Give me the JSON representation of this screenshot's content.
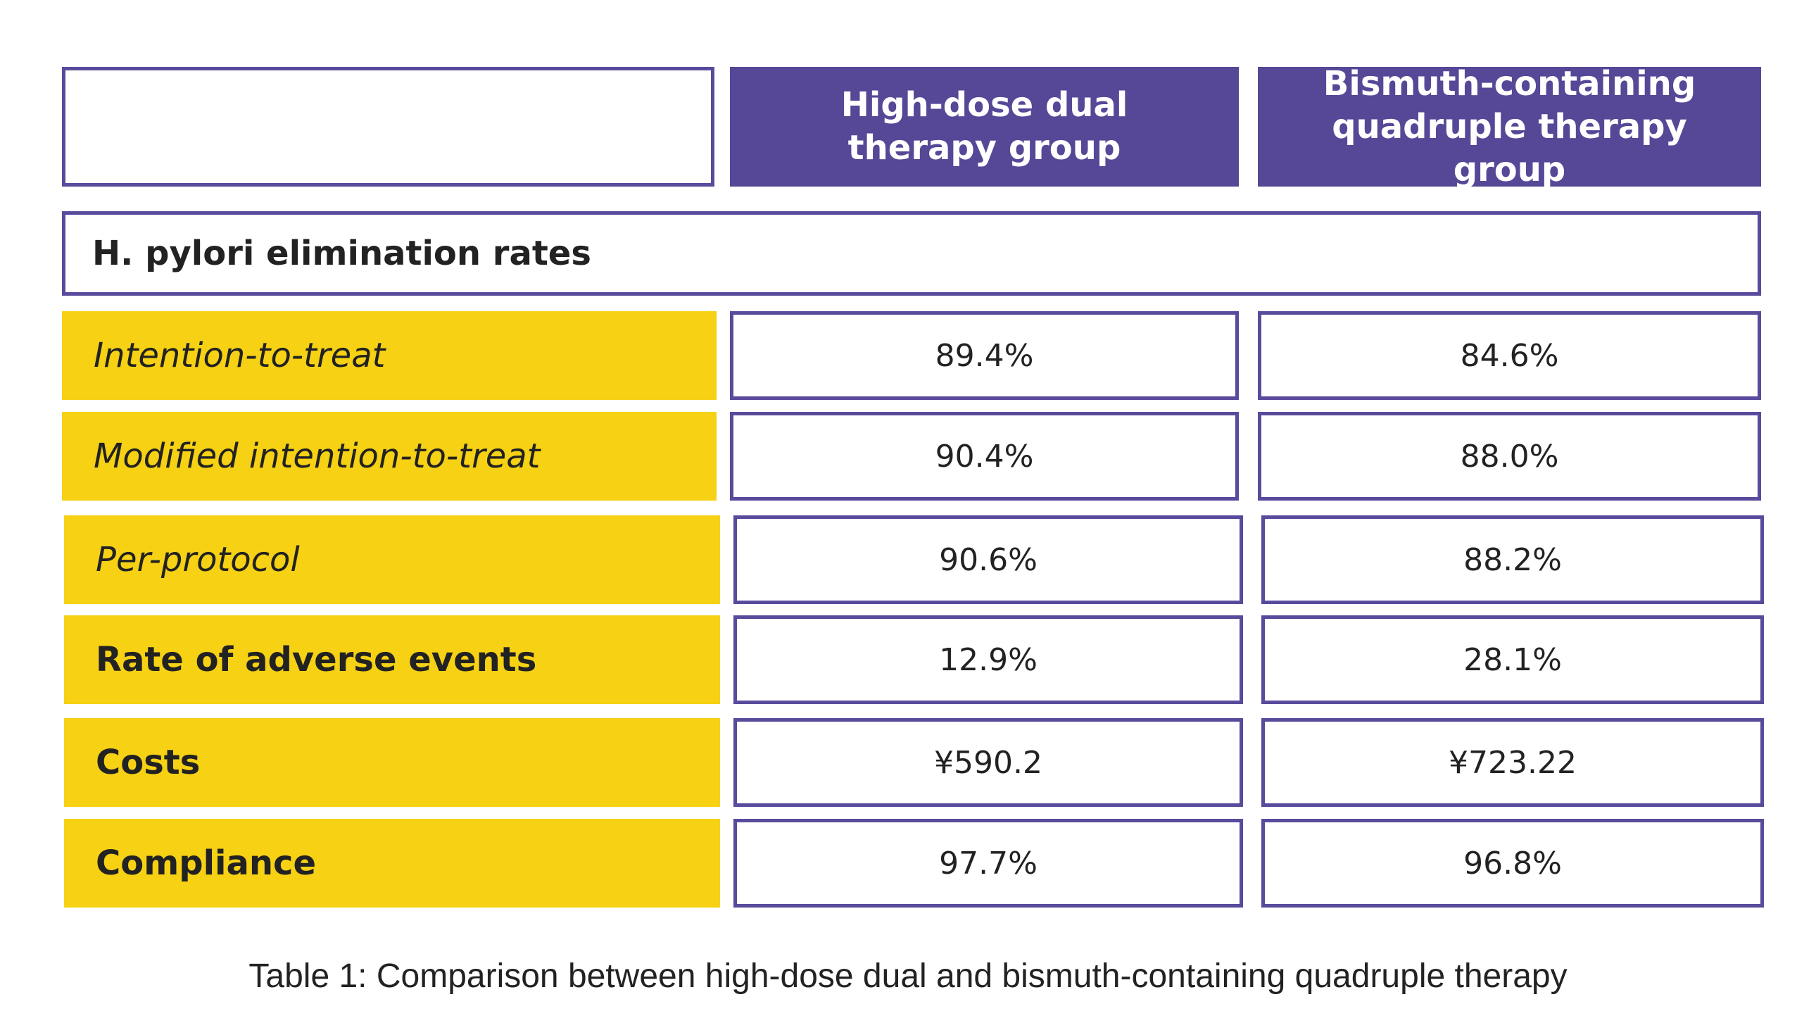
{
  "table": {
    "headers": [
      "",
      "High-dose dual therapy group",
      "Bismuth-containing quadruple therapy group"
    ],
    "section_title": "H. pylori elimination rates",
    "rows": [
      {
        "label": "Intention-to-treat",
        "style": "italic",
        "values": [
          "89.4%",
          "84.6%"
        ]
      },
      {
        "label": "Modified intention-to-treat",
        "style": "italic",
        "values": [
          "90.4%",
          "88.0%"
        ]
      },
      {
        "label": "Per-protocol",
        "style": "italic",
        "values": [
          "90.6%",
          "88.2%"
        ]
      },
      {
        "label": "Rate of adverse events",
        "style": "bold",
        "values": [
          "12.9%",
          "28.1%"
        ]
      },
      {
        "label": "Costs",
        "style": "bold",
        "values": [
          "¥590.2",
          "¥723.22"
        ]
      },
      {
        "label": "Compliance",
        "style": "bold",
        "values": [
          "97.7%",
          "96.8%"
        ]
      }
    ]
  },
  "caption": "Table 1: Comparison between high-dose dual and bismuth-containing quadruple therapy",
  "colors": {
    "header_fill": "#574897",
    "border": "#5a4a9c",
    "label_fill": "#f6d114",
    "text": "#222222"
  }
}
